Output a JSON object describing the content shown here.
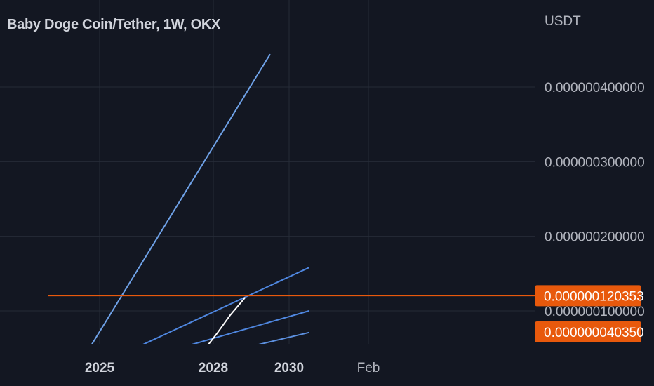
{
  "chart_data": {
    "type": "line",
    "title": "Baby Doge Coin/Tether, 1W, OKX",
    "currency_label": "USDT",
    "y_ticks": [
      {
        "value": 4e-07,
        "label": "0.000000400000"
      },
      {
        "value": 3e-07,
        "label": "0.000000300000"
      },
      {
        "value": 2e-07,
        "label": "0.000000200000"
      },
      {
        "value": 1e-07,
        "label": "0.000000100000"
      }
    ],
    "x_ticks": [
      {
        "value": 0,
        "label": "2025",
        "bold": true
      },
      {
        "value": 1,
        "label": "2028",
        "bold": true
      },
      {
        "value": 2,
        "label": "2030",
        "bold": true
      },
      {
        "value": 3,
        "label": "Feb",
        "bold": false
      }
    ],
    "ylim": [
      4e-08,
      4.4e-07
    ],
    "grid": true,
    "horizontal_line": {
      "value": 1.20353e-07,
      "color": "#e8590c"
    },
    "price_labels": [
      {
        "value": 1.20353e-07,
        "label": "0.000000120353",
        "color": "#e8590c"
      },
      {
        "value": 4.035e-08,
        "label": "0.000000040350",
        "color": "#e8590c"
      }
    ],
    "trend_lines": [
      {
        "name": "",
        "color": "#6fa2e8",
        "points": [
          [
            -0.13,
            4e-08
          ],
          [
            1.75,
            4.44e-07
          ]
        ]
      },
      {
        "name": "",
        "color": "#4f87e0",
        "points": [
          [
            0.17,
            4e-08
          ],
          [
            2.25,
            1.58e-07
          ]
        ]
      },
      {
        "name": "",
        "color": "#4f87e0",
        "points": [
          [
            0.47,
            4e-08
          ],
          [
            2.25,
            1e-07
          ]
        ]
      },
      {
        "name": "",
        "color": "#5d91e0",
        "points": [
          [
            0.99,
            4e-08
          ],
          [
            2.25,
            7.1e-08
          ]
        ]
      }
    ],
    "price_path": {
      "name": "",
      "color": "#ffffff",
      "points": [
        [
          0.88,
          4e-08
        ],
        [
          1.05,
          7e-08
        ],
        [
          1.22,
          9.4e-08
        ],
        [
          1.42,
          1.18e-07
        ]
      ]
    }
  }
}
